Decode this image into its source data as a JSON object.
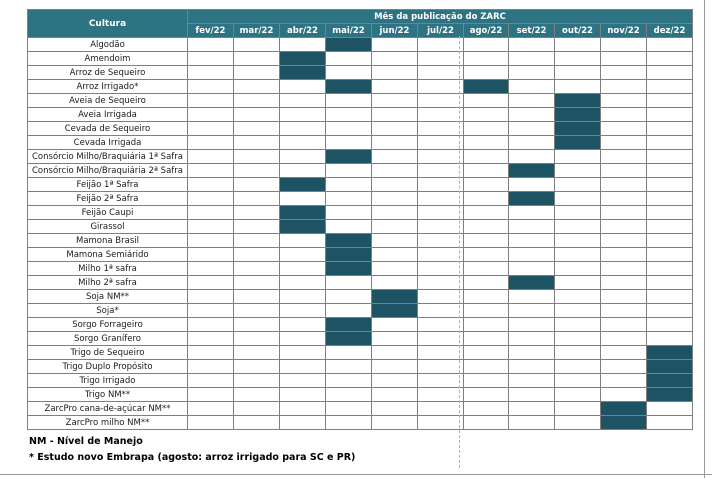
{
  "header": {
    "crop_label": "Cultura",
    "month_group_label": "Mês da publicação do ZARC",
    "months": [
      "fev/22",
      "mar/22",
      "abr/22",
      "mai/22",
      "jun/22",
      "jul/22",
      "ago/22",
      "set/22",
      "out/22",
      "nov/22",
      "dez/22"
    ]
  },
  "highlight_color": "#1d5362",
  "header_color": "#2e7384",
  "rows": [
    {
      "crop": "Algodão",
      "months": [
        "mai/22"
      ]
    },
    {
      "crop": "Amendoim",
      "months": [
        "abr/22"
      ]
    },
    {
      "crop": "Arroz de Sequeiro",
      "months": [
        "abr/22"
      ]
    },
    {
      "crop": "Arroz Irrigado*",
      "months": [
        "mai/22",
        "ago/22"
      ]
    },
    {
      "crop": "Aveia de Sequeiro",
      "months": [
        "out/22"
      ]
    },
    {
      "crop": "Aveia Irrigada",
      "months": [
        "out/22"
      ]
    },
    {
      "crop": "Cevada de Sequeiro",
      "months": [
        "out/22"
      ]
    },
    {
      "crop": "Cevada Irrigada",
      "months": [
        "out/22"
      ]
    },
    {
      "crop": "Consórcio Milho/Braquiária 1ª Safra",
      "months": [
        "mai/22"
      ]
    },
    {
      "crop": "Consórcio Milho/Braquiária 2ª Safra",
      "months": [
        "set/22"
      ]
    },
    {
      "crop": "Feijão 1ª Safra",
      "months": [
        "abr/22"
      ]
    },
    {
      "crop": "Feijão 2ª Safra",
      "months": [
        "set/22"
      ]
    },
    {
      "crop": "Feijão Caupi",
      "months": [
        "abr/22"
      ]
    },
    {
      "crop": "Girassol",
      "months": [
        "abr/22"
      ]
    },
    {
      "crop": "Mamona Brasil",
      "months": [
        "mai/22"
      ]
    },
    {
      "crop": "Mamona Semiárido",
      "months": [
        "mai/22"
      ]
    },
    {
      "crop": "Milho 1ª safra",
      "months": [
        "mai/22"
      ]
    },
    {
      "crop": "Milho 2ª safra",
      "months": [
        "set/22"
      ]
    },
    {
      "crop": "Soja NM**",
      "months": [
        "jun/22"
      ]
    },
    {
      "crop": "Soja*",
      "months": [
        "jun/22"
      ]
    },
    {
      "crop": "Sorgo Forrageiro",
      "months": [
        "mai/22"
      ]
    },
    {
      "crop": "Sorgo Granífero",
      "months": [
        "mai/22"
      ]
    },
    {
      "crop": "Trigo de Sequeiro",
      "months": [
        "dez/22"
      ]
    },
    {
      "crop": "Trigo Duplo Propósito",
      "months": [
        "dez/22"
      ]
    },
    {
      "crop": "Trigo Irrigado",
      "months": [
        "dez/22"
      ]
    },
    {
      "crop": "Trigo NM**",
      "months": [
        "dez/22"
      ]
    },
    {
      "crop": "ZarcPro cana-de-açúcar NM**",
      "months": [
        "nov/22"
      ]
    },
    {
      "crop": "ZarcPro milho NM**",
      "months": [
        "nov/22"
      ]
    }
  ],
  "notes": {
    "nm": "NM - Nível de Manejo",
    "embrapa": "* Estudo novo Embrapa (agosto: arroz irrigado para SC e PR)"
  }
}
